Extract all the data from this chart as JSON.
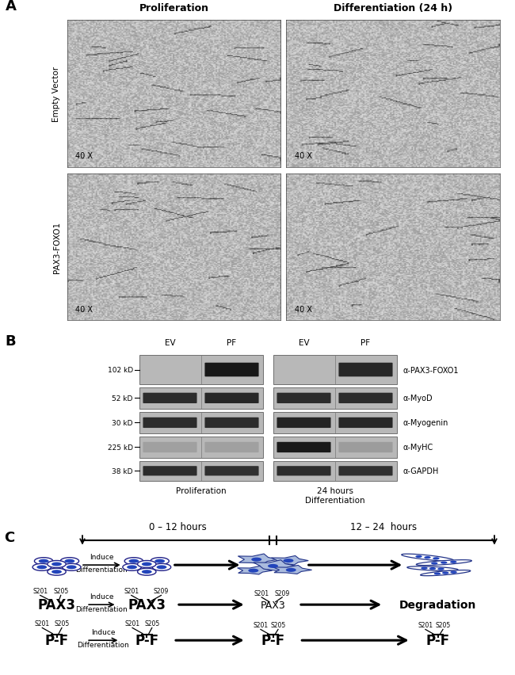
{
  "panel_A_title_prolif": "Proliferation",
  "panel_A_title_diff": "Differentiation (24 h)",
  "row1_label": "Empty Vector",
  "row2_label": "PAX3-FOXO1",
  "magnification": "40 X",
  "panel_B_label": "B",
  "panel_A_label": "A",
  "panel_C_label": "C",
  "wb_labels_left": [
    "102 kD",
    "52 kD",
    "30 kD",
    "225 kD",
    "38 kD"
  ],
  "wb_labels_right": [
    "α-PAX3-FOXO1",
    "α-MyoD",
    "α-Myogenin",
    "α-MyHC",
    "α-GAPDH"
  ],
  "wb_bottom_left": "Proliferation",
  "wb_bottom_right": "24 hours\nDifferentiation",
  "ev_label": "EV",
  "pf_label": "PF",
  "timeline_left": "0 – 12 hours",
  "timeline_right": "12 – 24  hours",
  "bg_color": "#ffffff",
  "blue_cell": "#3355aa",
  "blue_light": "#aabbdd",
  "blue_nucleus": "#2244bb"
}
